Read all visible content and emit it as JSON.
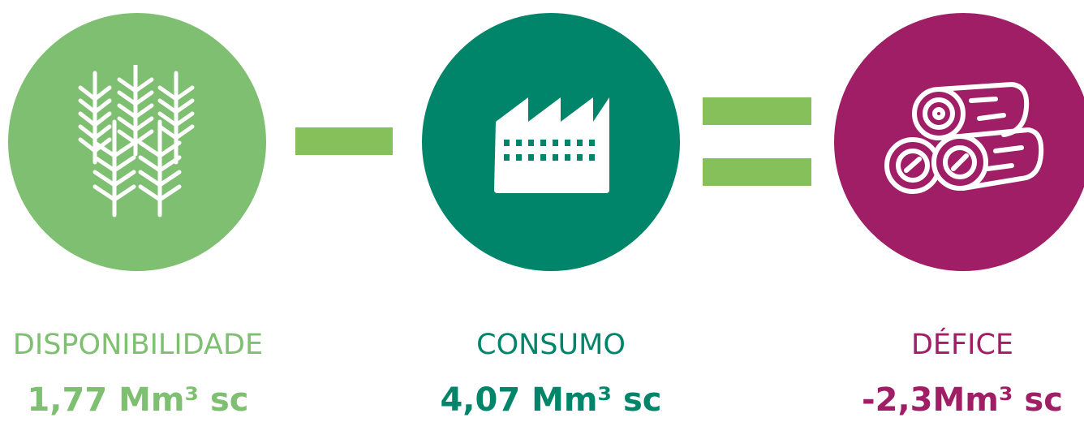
{
  "colors": {
    "light_green": "#7fbf71",
    "operator_green": "#86c05a",
    "teal": "#00856a",
    "magenta": "#a01e66",
    "icon": "#ffffff"
  },
  "items": [
    {
      "label": "DISPONIBILIDADE",
      "value": "1,77 Mm³ sc",
      "icon": "forest-icon",
      "color": "#7fbf71"
    },
    {
      "label": "CONSUMO",
      "value": "4,07 Mm³ sc",
      "icon": "factory-icon",
      "color": "#00856a"
    },
    {
      "label": "DÉFICE",
      "value": "-2,3Mm³ sc",
      "icon": "logs-icon",
      "color": "#a01e66"
    }
  ],
  "operators": [
    "minus",
    "equals"
  ]
}
